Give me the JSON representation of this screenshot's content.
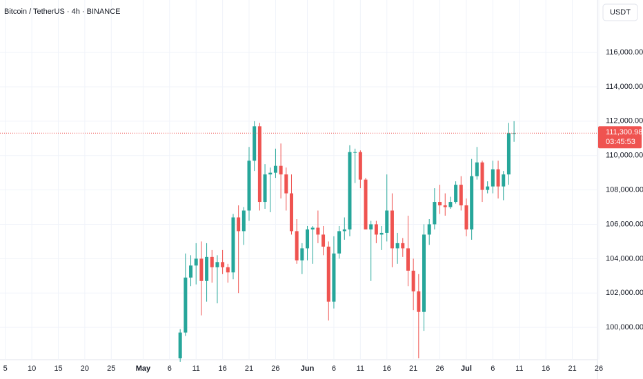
{
  "chart_data": {
    "type": "candlestick",
    "title": "Bitcoin / TetherUS · 4h · BINANCE",
    "currency": "USDT",
    "x": [
      "05-08",
      "05-09",
      "05-10",
      "05-11",
      "05-12",
      "05-13",
      "05-14",
      "05-15",
      "05-16",
      "05-17",
      "05-18",
      "05-19",
      "05-20",
      "05-21",
      "05-22",
      "05-23",
      "05-24",
      "05-25",
      "05-26",
      "05-27",
      "05-28",
      "05-29",
      "05-30",
      "05-31",
      "06-01",
      "06-02",
      "06-03",
      "06-04",
      "06-05",
      "06-06",
      "06-07",
      "06-08",
      "06-09",
      "06-10",
      "06-11",
      "06-12",
      "06-13",
      "06-14",
      "06-15",
      "06-16",
      "06-17",
      "06-18",
      "06-19",
      "06-20",
      "06-21",
      "06-22",
      "06-23",
      "06-24",
      "06-25",
      "06-26",
      "06-27",
      "06-28",
      "06-29",
      "06-30",
      "07-01",
      "07-02",
      "07-03",
      "07-04",
      "07-05",
      "07-06",
      "07-07",
      "07-08",
      "07-09",
      "07-10"
    ],
    "open": [
      98200,
      99700,
      102900,
      103600,
      104000,
      102700,
      104100,
      103500,
      103800,
      103500,
      103200,
      106400,
      105600,
      106800,
      109700,
      111700,
      107300,
      108900,
      109000,
      109400,
      108900,
      107800,
      105600,
      103900,
      104600,
      105700,
      105800,
      105400,
      104700,
      101500,
      104300,
      105600,
      105700,
      110200,
      110200,
      108600,
      105700,
      106000,
      105400,
      105500,
      106800,
      104600,
      104900,
      104600,
      103300,
      102100,
      100900,
      105400,
      106000,
      107300,
      107100,
      107000,
      107300,
      108300,
      107100,
      105700,
      108800,
      109600,
      108000,
      108200,
      109200,
      108200,
      108900,
      111300
    ],
    "high": [
      99900,
      104300,
      104200,
      104900,
      105000,
      104900,
      104500,
      104200,
      104500,
      103700,
      106600,
      107100,
      107000,
      110500,
      112000,
      111900,
      109500,
      109300,
      110400,
      110700,
      109300,
      108900,
      106300,
      104900,
      105900,
      105900,
      106800,
      105900,
      105000,
      105300,
      105900,
      106400,
      110600,
      110400,
      110300,
      108700,
      106200,
      106200,
      105900,
      108900,
      107800,
      105500,
      105200,
      106500,
      104000,
      103100,
      106000,
      106300,
      108100,
      108300,
      107800,
      107600,
      108500,
      108800,
      107500,
      109800,
      110500,
      109700,
      108500,
      109700,
      109700,
      109100,
      111900,
      112000
    ],
    "low": [
      98000,
      99500,
      102400,
      102500,
      100700,
      101500,
      102600,
      101400,
      103100,
      102600,
      102800,
      102000,
      104800,
      106200,
      109100,
      106800,
      106900,
      106700,
      108700,
      107500,
      106800,
      105400,
      103700,
      103100,
      103900,
      103700,
      104900,
      104200,
      100400,
      101100,
      104000,
      105100,
      105300,
      108400,
      108100,
      105700,
      102700,
      104900,
      104500,
      105000,
      103500,
      103700,
      104100,
      102400,
      101000,
      98200,
      99800,
      104800,
      105700,
      106600,
      106500,
      106900,
      107200,
      106800,
      105300,
      105100,
      108600,
      107300,
      107800,
      107800,
      107500,
      107400,
      108300,
      110800
    ],
    "close": [
      99700,
      102900,
      103600,
      104000,
      102700,
      104100,
      103500,
      103800,
      103500,
      103200,
      106400,
      105600,
      106800,
      109700,
      111700,
      107300,
      108900,
      109000,
      109400,
      108900,
      107800,
      105600,
      103900,
      104600,
      105700,
      105800,
      105400,
      104700,
      101500,
      104300,
      105600,
      105700,
      110200,
      110200,
      108600,
      105700,
      106000,
      105400,
      105500,
      106800,
      104600,
      104900,
      104600,
      103300,
      102100,
      100900,
      105400,
      106000,
      107300,
      107100,
      107000,
      107300,
      108300,
      107100,
      105700,
      108800,
      109600,
      108000,
      108200,
      109200,
      108200,
      108900,
      111300,
      111300.98
    ],
    "up_color": "#26a69a",
    "down_color": "#ef5350",
    "xlim": [
      "04-04",
      "07-26"
    ],
    "xticks": [
      {
        "value": "04-05",
        "label": "5"
      },
      {
        "value": "04-10",
        "label": "10"
      },
      {
        "value": "04-15",
        "label": "15"
      },
      {
        "value": "04-20",
        "label": "20"
      },
      {
        "value": "04-25",
        "label": "25"
      },
      {
        "value": "05-01",
        "label": "May"
      },
      {
        "value": "05-06",
        "label": "6"
      },
      {
        "value": "05-11",
        "label": "11"
      },
      {
        "value": "05-16",
        "label": "16"
      },
      {
        "value": "05-21",
        "label": "21"
      },
      {
        "value": "05-26",
        "label": "26"
      },
      {
        "value": "06-01",
        "label": "Jun"
      },
      {
        "value": "06-06",
        "label": "6"
      },
      {
        "value": "06-11",
        "label": "11"
      },
      {
        "value": "06-16",
        "label": "16"
      },
      {
        "value": "06-21",
        "label": "21"
      },
      {
        "value": "06-26",
        "label": "26"
      },
      {
        "value": "07-01",
        "label": "Jul"
      },
      {
        "value": "07-06",
        "label": "6"
      },
      {
        "value": "07-11",
        "label": "11"
      },
      {
        "value": "07-16",
        "label": "16"
      },
      {
        "value": "07-21",
        "label": "21"
      },
      {
        "value": "07-26",
        "label": "26"
      }
    ],
    "ylim": [
      98200,
      119050
    ],
    "yticks": [
      {
        "value": 100000,
        "label": "100,000.00"
      },
      {
        "value": 102000,
        "label": "102,000.00"
      },
      {
        "value": 104000,
        "label": "104,000.00"
      },
      {
        "value": 106000,
        "label": "106,000.00"
      },
      {
        "value": 108000,
        "label": "108,000.00"
      },
      {
        "value": 110000,
        "label": "110,000.00"
      },
      {
        "value": 112000,
        "label": "112,000.00"
      },
      {
        "value": 114000,
        "label": "114,000.00"
      },
      {
        "value": 116000,
        "label": "116,000.00"
      }
    ],
    "grid": true,
    "last_price": {
      "value": 111300.98,
      "label": "111,300.98"
    },
    "countdown": "03:45:53"
  }
}
